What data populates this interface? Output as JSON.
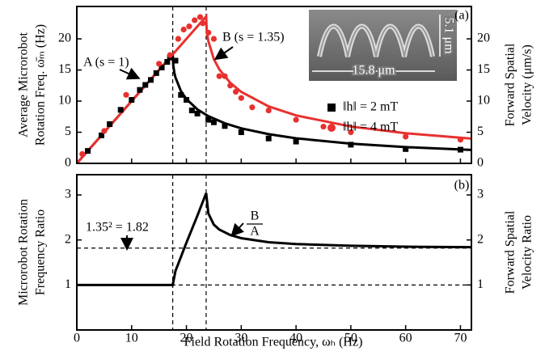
{
  "chart_data": [
    {
      "type": "scatter",
      "panel_label": "(a)",
      "ylabel": [
        "Average Microrobot",
        "Rotation Freq. ω̄ₘ (Hz)"
      ],
      "y2label": [
        "Forward Spatial",
        "Velocity (μm/s)"
      ],
      "xlim": [
        0,
        72
      ],
      "ylim": [
        0,
        25.2
      ],
      "yticks": [
        0,
        5,
        10,
        15,
        20
      ],
      "y2lim": [
        0,
        25.2
      ],
      "y2ticks": [
        0,
        5,
        10,
        15,
        20
      ],
      "vlines": [
        17.5,
        23.6
      ],
      "series": [
        {
          "name": "‖h‖ = 2 mT",
          "color": "#000000",
          "marker": "square",
          "x": [
            2,
            4.5,
            6,
            8,
            10,
            11.5,
            12.5,
            13.5,
            14.5,
            15.5,
            16.5,
            17,
            18,
            19,
            20,
            21,
            22,
            24,
            25,
            27,
            30,
            35,
            40,
            50,
            60,
            70
          ],
          "values": [
            2,
            4.5,
            6.3,
            8.6,
            10.2,
            11.8,
            12.6,
            13.4,
            14.5,
            15.4,
            16.3,
            17,
            16.5,
            11,
            10.2,
            8.5,
            8,
            7,
            6.6,
            6,
            5,
            4,
            3.5,
            3,
            2.3,
            2.2
          ]
        },
        {
          "name": "‖h‖ = 4 mT",
          "color": "#e8312f",
          "marker": "circle",
          "x": [
            1,
            5,
            9,
            15,
            17,
            18.5,
            19.5,
            20.5,
            21.5,
            22.5,
            23,
            24,
            25,
            26,
            27,
            28,
            29,
            30,
            32,
            35,
            40,
            45,
            50,
            60,
            70
          ],
          "values": [
            1.5,
            5.2,
            11,
            16,
            17.4,
            20,
            21.5,
            22,
            23,
            23.5,
            22.5,
            21,
            20,
            14,
            14,
            12.5,
            11.5,
            10.5,
            9,
            8.5,
            7,
            5.9,
            5,
            4.3,
            3.8
          ]
        }
      ],
      "fits": [
        {
          "color": "#000000",
          "x": [
            0,
            17.5,
            17.6,
            17.8,
            18,
            19,
            20,
            22,
            24,
            27,
            30,
            35,
            40,
            50,
            60,
            72
          ],
          "values": [
            0,
            17.5,
            15.73,
            14.55,
            13.79,
            11.6,
            10.32,
            8.67,
            7.58,
            6.44,
            5.63,
            4.69,
            4.03,
            3.16,
            2.61,
            2.16
          ]
        },
        {
          "color": "#e8312f",
          "x": [
            0,
            23.6,
            23.7,
            23.9,
            24,
            25,
            26,
            28,
            30,
            35,
            40,
            50,
            60,
            72
          ],
          "values": [
            0,
            23.6,
            21.53,
            20.13,
            19.64,
            16.75,
            15.09,
            12.93,
            11.48,
            9.15,
            7.7,
            5.92,
            4.84,
            3.98
          ]
        }
      ],
      "annotations": [
        "A (s = 1)",
        "B (s = 1.35)"
      ],
      "inset": {
        "width_label": "15.8 μm",
        "height_label": "5.1 μm"
      }
    },
    {
      "type": "line",
      "panel_label": "(b)",
      "ylabel": [
        "Microrobot Rotation",
        "Frequency Ratio"
      ],
      "y2label": [
        "Forward Spatial",
        "Velocity Ratio"
      ],
      "xlabel": "Field Rotation Frequency, ωₕ (Hz)",
      "xlim": [
        0,
        72
      ],
      "xticks": [
        0,
        10,
        20,
        30,
        40,
        50,
        60,
        70
      ],
      "ylim": [
        0,
        3.45
      ],
      "yticks": [
        1,
        2,
        3
      ],
      "y2lim": [
        0,
        3.45
      ],
      "y2ticks": [
        1,
        2,
        3
      ],
      "vlines": [
        17.5,
        23.6
      ],
      "hlines": [
        1,
        1.82
      ],
      "fits": [
        {
          "color": "#000000",
          "x": [
            0,
            17.5,
            18,
            20,
            22,
            23.6,
            24,
            25,
            26,
            28,
            30,
            35,
            40,
            50,
            60,
            72
          ],
          "values": [
            1,
            1,
            1.31,
            1.94,
            2.54,
            3.04,
            2.59,
            2.34,
            2.23,
            2.11,
            2.04,
            1.95,
            1.91,
            1.87,
            1.85,
            1.84
          ]
        }
      ],
      "annotations": [
        "1.35² = 1.82"
      ],
      "fraction": {
        "numerator": "B",
        "denominator": "A"
      }
    }
  ]
}
